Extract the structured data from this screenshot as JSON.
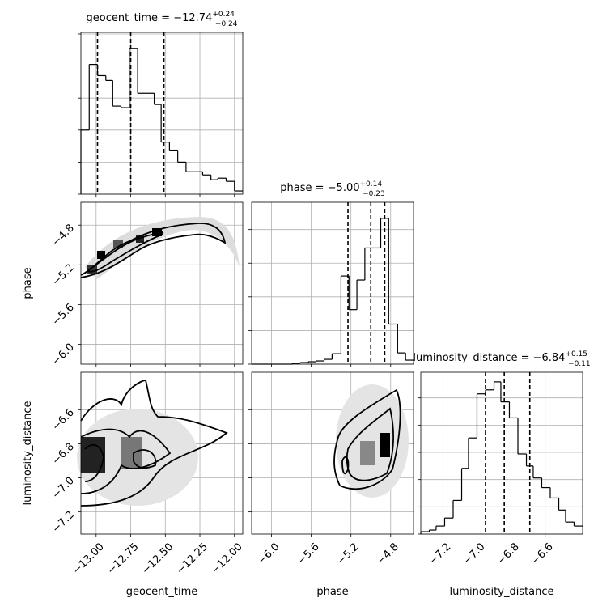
{
  "chart_data": {
    "type": "corner",
    "grid": true,
    "hist_color": "#000000",
    "parameters": [
      {
        "name": "geocent_time",
        "title": "geocent_time = −12.74",
        "title_plus": "+0.24",
        "title_minus": "−0.24",
        "xlim": [
          -13.11,
          -11.94
        ],
        "xticks": [
          {
            "value": -13,
            "label": "−13.00"
          },
          {
            "value": -12.75,
            "label": "−12.75"
          },
          {
            "value": -12.5,
            "label": "−12.50"
          },
          {
            "value": -12.25,
            "label": "−12.25"
          },
          {
            "value": -12,
            "label": "−12.00"
          }
        ],
        "quantiles": [
          -12.99,
          -12.75,
          -12.51
        ],
        "hist_ylim": [
          0,
          202
        ],
        "hist_yticks": [
          0,
          40,
          80,
          120,
          160,
          200
        ],
        "bins": [
          -13.11,
          -13.05,
          -12.99,
          -12.93,
          -12.88,
          -12.82,
          -12.76,
          -12.7,
          -12.64,
          -12.58,
          -12.53,
          -12.47,
          -12.41,
          -12.35,
          -12.29,
          -12.23,
          -12.17,
          -12.12,
          -12.06,
          -12.0,
          -11.94
        ],
        "values": [
          80,
          162,
          148,
          142,
          110,
          108,
          182,
          126,
          126,
          112,
          65,
          55,
          40,
          28,
          28,
          24,
          18,
          20,
          16,
          4
        ]
      },
      {
        "name": "phase",
        "title": "phase = −5.00",
        "title_plus": "+0.14",
        "title_minus": "−0.23",
        "xlim": [
          -6.2,
          -4.57
        ],
        "xticks": [
          {
            "value": -6,
            "label": "−6.0"
          },
          {
            "value": -5.6,
            "label": "−5.6"
          },
          {
            "value": -5.2,
            "label": "−5.2"
          },
          {
            "value": -4.8,
            "label": "−4.8"
          }
        ],
        "quantiles": [
          -5.23,
          -5.0,
          -4.86
        ],
        "hist_ylim": [
          0,
          202
        ],
        "hist_yticks": [
          0,
          42,
          84,
          126,
          168
        ],
        "bins": [
          -6.2,
          -6.12,
          -6.04,
          -5.96,
          -5.87,
          -5.79,
          -5.71,
          -5.63,
          -5.55,
          -5.47,
          -5.39,
          -5.3,
          -5.22,
          -5.14,
          -5.06,
          -4.98,
          -4.9,
          -4.82,
          -4.73,
          -4.65,
          -4.57
        ],
        "values": [
          0,
          0,
          0,
          0,
          0,
          1,
          2,
          3,
          4,
          6,
          13,
          110,
          68,
          105,
          145,
          145,
          182,
          50,
          14,
          5
        ]
      },
      {
        "name": "luminosity_distance",
        "title": "luminosity_distance = −6.84",
        "title_plus": "+0.15",
        "title_minus": "−0.11",
        "xlim": [
          -7.33,
          -6.38
        ],
        "xticks": [
          {
            "value": -7.2,
            "label": "−7.2"
          },
          {
            "value": -7,
            "label": "−7.0"
          },
          {
            "value": -6.8,
            "label": "−6.8"
          },
          {
            "value": -6.6,
            "label": "−6.6"
          }
        ],
        "quantiles": [
          -6.95,
          -6.84,
          -6.69
        ],
        "hist_ylim": [
          0,
          202
        ],
        "hist_yticks": [
          0,
          34,
          68,
          102,
          136,
          170
        ],
        "bins": [
          -7.33,
          -7.28,
          -7.24,
          -7.19,
          -7.14,
          -7.09,
          -7.05,
          -7.0,
          -6.95,
          -6.9,
          -6.86,
          -6.81,
          -6.76,
          -6.71,
          -6.67,
          -6.62,
          -6.57,
          -6.52,
          -6.48,
          -6.43,
          -6.38
        ],
        "values": [
          3,
          5,
          10,
          20,
          42,
          82,
          120,
          175,
          180,
          190,
          165,
          145,
          100,
          85,
          70,
          58,
          45,
          30,
          15,
          10
        ]
      }
    ]
  }
}
